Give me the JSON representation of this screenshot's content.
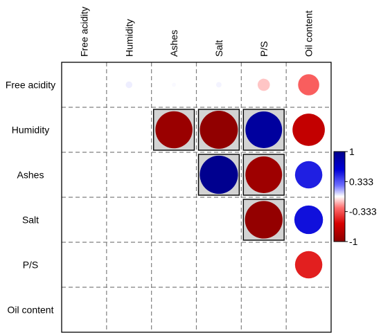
{
  "chart_data": {
    "type": "heatmap",
    "variables": [
      "Free acidity",
      "Humidity",
      "Ashes",
      "Salt",
      "P/S",
      "Oil content"
    ],
    "cells": [
      {
        "row": "Free acidity",
        "col": "Humidity",
        "value": 0.03,
        "significant": false
      },
      {
        "row": "Free acidity",
        "col": "Ashes",
        "value": 0.01,
        "significant": false
      },
      {
        "row": "Free acidity",
        "col": "Salt",
        "value": 0.02,
        "significant": false
      },
      {
        "row": "Free acidity",
        "col": "P/S",
        "value": -0.1,
        "significant": false
      },
      {
        "row": "Free acidity",
        "col": "Oil content",
        "value": -0.3,
        "significant": false
      },
      {
        "row": "Humidity",
        "col": "Ashes",
        "value": -0.92,
        "significant": true
      },
      {
        "row": "Humidity",
        "col": "Salt",
        "value": -0.97,
        "significant": true
      },
      {
        "row": "Humidity",
        "col": "P/S",
        "value": 0.9,
        "significant": true
      },
      {
        "row": "Humidity",
        "col": "Oil content",
        "value": -0.7,
        "significant": false
      },
      {
        "row": "Ashes",
        "col": "Salt",
        "value": 0.98,
        "significant": true
      },
      {
        "row": "Ashes",
        "col": "P/S",
        "value": -0.9,
        "significant": true
      },
      {
        "row": "Ashes",
        "col": "Oil content",
        "value": 0.5,
        "significant": false
      },
      {
        "row": "Salt",
        "col": "P/S",
        "value": -0.95,
        "significant": true
      },
      {
        "row": "Salt",
        "col": "Oil content",
        "value": 0.55,
        "significant": false
      },
      {
        "row": "P/S",
        "col": "Oil content",
        "value": -0.5,
        "significant": false
      }
    ],
    "colorbar": {
      "range": [
        -1,
        1
      ],
      "tick_labels": [
        "1",
        "0.333",
        "-0.333",
        "-1"
      ],
      "tick_values": [
        1,
        0.333,
        -0.333,
        -1
      ],
      "colors": {
        "negative": "#8b0000",
        "zero": "#ffffff",
        "positive": "#00008b"
      }
    },
    "grid": "dashed",
    "legend_placement": "right"
  }
}
